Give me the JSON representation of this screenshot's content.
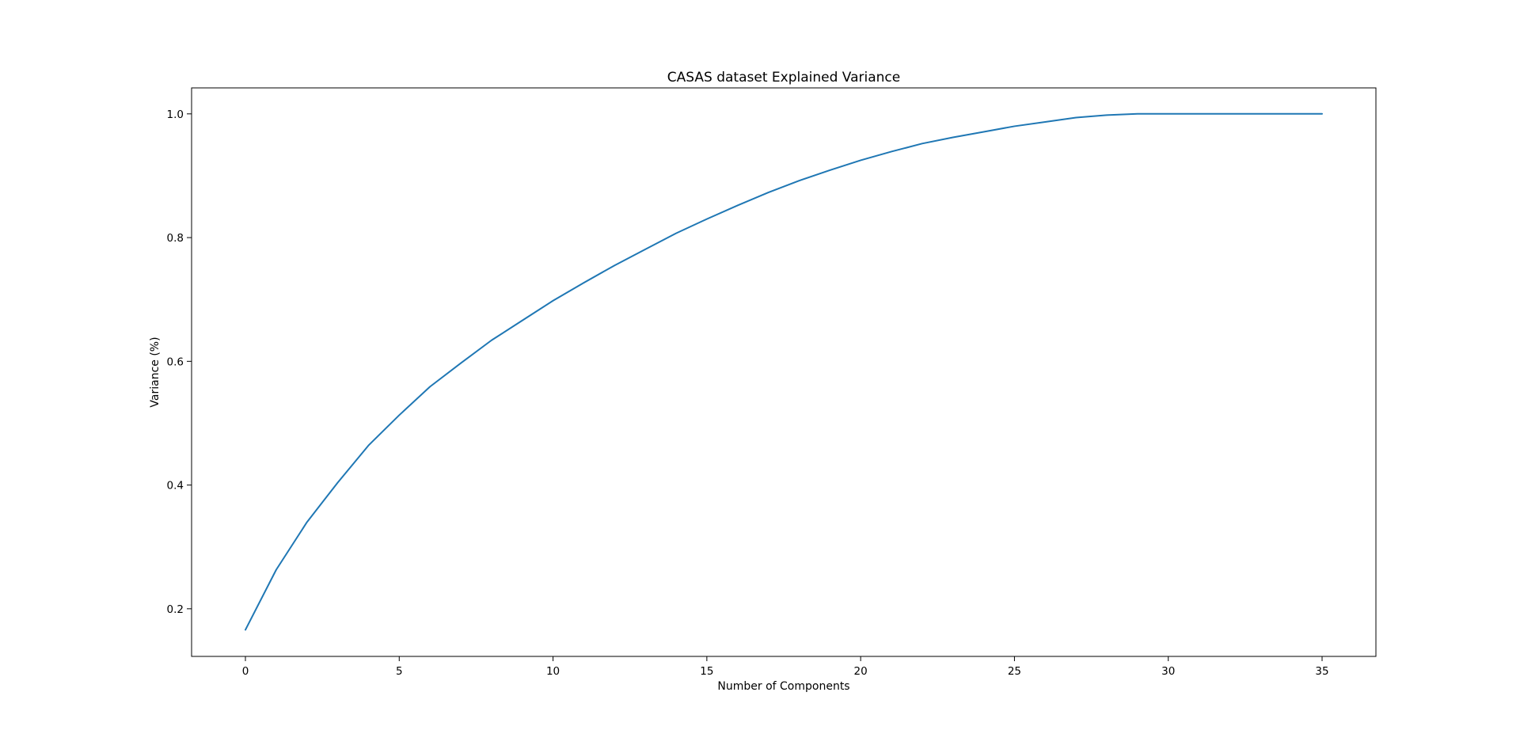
{
  "chart_data": {
    "type": "line",
    "title": "CASAS dataset Explained Variance",
    "xlabel": "Number of Components",
    "ylabel": "Variance (%)",
    "xlim": [
      -1.75,
      36.75
    ],
    "ylim": [
      0.123,
      1.042
    ],
    "xticks": [
      0,
      5,
      10,
      15,
      20,
      25,
      30,
      35
    ],
    "yticks": [
      0.2,
      0.4,
      0.6,
      0.8,
      1.0
    ],
    "xtick_labels": [
      "0",
      "5",
      "10",
      "15",
      "20",
      "25",
      "30",
      "35"
    ],
    "ytick_labels": [
      "0.2",
      "0.4",
      "0.6",
      "0.8",
      "1.0"
    ],
    "grid": false,
    "series": [
      {
        "color": "#1f77b4",
        "x": [
          0,
          1,
          2,
          3,
          4,
          5,
          6,
          7,
          8,
          9,
          10,
          11,
          12,
          13,
          14,
          15,
          16,
          17,
          18,
          19,
          20,
          21,
          22,
          23,
          24,
          25,
          26,
          27,
          28,
          29,
          30,
          31,
          32,
          33,
          34,
          35
        ],
        "y": [
          0.166,
          0.263,
          0.34,
          0.404,
          0.464,
          0.513,
          0.559,
          0.597,
          0.634,
          0.666,
          0.698,
          0.727,
          0.755,
          0.781,
          0.807,
          0.83,
          0.852,
          0.873,
          0.892,
          0.909,
          0.925,
          0.939,
          0.952,
          0.962,
          0.971,
          0.98,
          0.987,
          0.994,
          0.998,
          1.0,
          1.0,
          1.0,
          1.0,
          1.0,
          1.0,
          1.0
        ]
      }
    ]
  }
}
